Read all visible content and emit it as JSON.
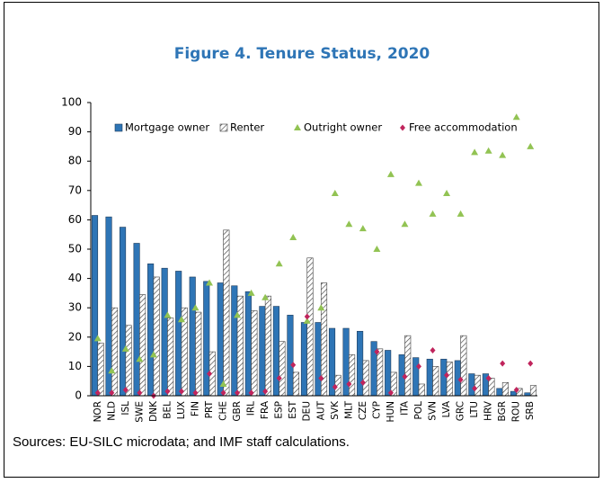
{
  "chart_data": {
    "type": "bar",
    "title": "Figure 4. Tenure Status, 2020",
    "categories": [
      "NOR",
      "NLD",
      "ISL",
      "SWE",
      "DNK",
      "BEL",
      "LUX",
      "FIN",
      "PRT",
      "CHE",
      "GBR",
      "IRL",
      "FRA",
      "ESP",
      "EST",
      "DEU",
      "AUT",
      "SVK",
      "MLT",
      "CZE",
      "CYP",
      "HUN",
      "ITA",
      "POL",
      "SVN",
      "LVA",
      "GRC",
      "LTU",
      "HRV",
      "BGR",
      "ROU",
      "SRB"
    ],
    "series": [
      {
        "name": "Mortgage owner",
        "color": "#2e75b6",
        "values": [
          61.5,
          61,
          57.5,
          52,
          45,
          43.5,
          42.5,
          40.5,
          39,
          38.5,
          37.5,
          35.5,
          30.5,
          30.5,
          27.5,
          25,
          25,
          23,
          23,
          22,
          18.5,
          15.5,
          14,
          13,
          12.5,
          12.5,
          12,
          7.5,
          7.5,
          2.5,
          1.5,
          1
        ]
      },
      {
        "name": "Renter",
        "color": "#404040",
        "values": [
          18,
          30,
          24,
          34.5,
          40.5,
          26.5,
          30,
          28.5,
          15,
          56.5,
          34,
          29,
          34,
          18.5,
          8,
          47,
          38.5,
          7,
          14,
          12,
          16,
          8,
          20.5,
          4,
          10,
          11.5,
          20.5,
          7,
          6,
          4.5,
          2.5,
          3.5
        ]
      },
      {
        "name": "Outright owner",
        "color": "#92c353",
        "values": [
          19.5,
          8.5,
          16,
          12.5,
          14,
          27.5,
          26,
          30,
          38.5,
          4,
          27.5,
          35,
          33.5,
          45,
          54,
          25.5,
          30,
          69,
          58.5,
          57,
          50,
          75.5,
          58.5,
          72.5,
          62,
          69,
          62,
          83,
          83.5,
          82,
          95,
          85
        ]
      },
      {
        "name": "Free accommodation",
        "color": "#c0245c",
        "values": [
          1,
          1,
          2,
          1,
          0,
          1.5,
          1.5,
          1,
          7.5,
          1,
          1,
          1,
          1.5,
          6,
          10.5,
          27,
          6,
          3,
          4,
          4.5,
          15,
          1,
          6.5,
          10,
          15.5,
          7,
          5.5,
          2.5,
          6,
          11,
          2,
          11
        ]
      }
    ],
    "ylim": [
      0,
      100
    ],
    "yticks": [
      0,
      10,
      20,
      30,
      40,
      50,
      60,
      70,
      80,
      90,
      100
    ],
    "source": "Sources: EU-SILC microdata; and IMF staff calculations."
  }
}
